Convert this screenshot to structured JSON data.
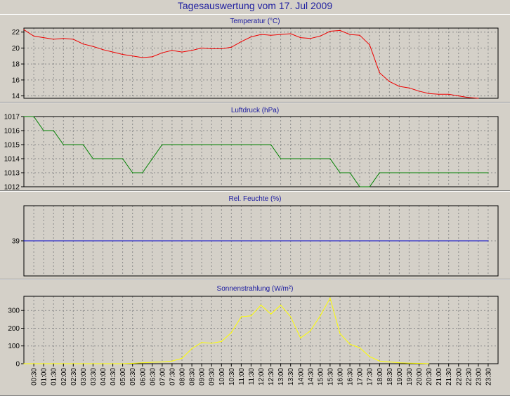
{
  "title": "Tagesauswertung vom 17. Jul 2009",
  "chart_data": [
    {
      "type": "line",
      "title": "Temperatur (°C)",
      "color": "#ee0000",
      "ylim": [
        13.7,
        22.5
      ],
      "yticks": [
        "22",
        "20",
        "18",
        "16",
        "14"
      ],
      "y_tick_values": [
        22,
        20,
        18,
        16,
        14
      ],
      "x": [
        "00:00",
        "00:30",
        "01:00",
        "01:30",
        "02:00",
        "02:30",
        "03:00",
        "03:30",
        "04:00",
        "04:30",
        "05:00",
        "05:30",
        "06:00",
        "06:30",
        "07:00",
        "07:30",
        "08:00",
        "08:30",
        "09:00",
        "09:30",
        "10:00",
        "10:30",
        "11:00",
        "11:30",
        "12:00",
        "12:30",
        "13:00",
        "13:30",
        "14:00",
        "14:30",
        "15:00",
        "15:30",
        "16:00",
        "16:30",
        "17:00",
        "17:30",
        "18:00",
        "18:30",
        "19:00",
        "19:30",
        "20:00",
        "20:30",
        "21:00",
        "21:30",
        "22:00",
        "22:30",
        "23:00"
      ],
      "values": [
        22.3,
        21.5,
        21.3,
        21.1,
        21.2,
        21.1,
        20.5,
        20.2,
        19.8,
        19.5,
        19.2,
        19.0,
        18.8,
        18.9,
        19.4,
        19.7,
        19.5,
        19.7,
        20.0,
        19.9,
        19.9,
        20.1,
        20.8,
        21.4,
        21.7,
        21.6,
        21.7,
        21.8,
        21.3,
        21.2,
        21.5,
        22.1,
        22.2,
        21.7,
        21.6,
        20.4,
        16.9,
        15.8,
        15.2,
        15.0,
        14.6,
        14.3,
        14.2,
        14.2,
        14.0,
        13.8,
        13.7
      ]
    },
    {
      "type": "line",
      "title": "Luftdruck (hPa)",
      "color": "#008000",
      "ylim": [
        1012,
        1017
      ],
      "yticks": [
        "1017",
        "1016",
        "1015",
        "1014",
        "1013",
        "1012"
      ],
      "y_tick_values": [
        1017,
        1016,
        1015,
        1014,
        1013,
        1012
      ],
      "x": [
        "00:00",
        "00:30",
        "01:00",
        "01:30",
        "02:00",
        "02:30",
        "03:00",
        "03:30",
        "04:00",
        "04:30",
        "05:00",
        "05:30",
        "06:00",
        "06:30",
        "07:00",
        "07:30",
        "08:00",
        "08:30",
        "09:00",
        "09:30",
        "10:00",
        "10:30",
        "11:00",
        "11:30",
        "12:00",
        "12:30",
        "13:00",
        "13:30",
        "14:00",
        "14:30",
        "15:00",
        "15:30",
        "16:00",
        "16:30",
        "17:00",
        "17:30",
        "18:00",
        "18:30",
        "19:00",
        "19:30",
        "20:00",
        "20:30",
        "21:00",
        "21:30",
        "22:00",
        "22:30",
        "23:00",
        "23:30"
      ],
      "values": [
        1017,
        1017,
        1016,
        1016,
        1015,
        1015,
        1015,
        1014,
        1014,
        1014,
        1014,
        1013,
        1013,
        1014,
        1015,
        1015,
        1015,
        1015,
        1015,
        1015,
        1015,
        1015,
        1015,
        1015,
        1015,
        1015,
        1014,
        1014,
        1014,
        1014,
        1014,
        1014,
        1013,
        1013,
        1012,
        1012,
        1013,
        1013,
        1013,
        1013,
        1013,
        1013,
        1013,
        1013,
        1013,
        1013,
        1013,
        1013
      ]
    },
    {
      "type": "line",
      "title": "Rel. Feuchte (%)",
      "color": "#0000cc",
      "ylim": [
        29,
        49
      ],
      "yticks": [
        "39"
      ],
      "y_tick_values": [
        39
      ],
      "x": [
        "00:00",
        "23:30"
      ],
      "values": [
        39,
        39
      ]
    },
    {
      "type": "line",
      "title": "Sonnenstrahlung (W/m²)",
      "color": "#ffff00",
      "ylim": [
        0,
        380
      ],
      "yticks": [
        "300",
        "200",
        "100",
        "0"
      ],
      "y_tick_values": [
        300,
        200,
        100,
        0
      ],
      "x": [
        "00:00",
        "00:30",
        "01:00",
        "01:30",
        "02:00",
        "02:30",
        "03:00",
        "03:30",
        "04:00",
        "04:30",
        "05:00",
        "05:30",
        "06:00",
        "06:30",
        "07:00",
        "07:30",
        "08:00",
        "08:30",
        "09:00",
        "09:30",
        "10:00",
        "10:30",
        "11:00",
        "11:30",
        "12:00",
        "12:30",
        "13:00",
        "13:30",
        "14:00",
        "14:30",
        "15:00",
        "15:30",
        "16:00",
        "16:30",
        "17:00",
        "17:30",
        "18:00",
        "18:30",
        "19:00",
        "19:30",
        "20:00",
        "20:30"
      ],
      "values": [
        0,
        0,
        0,
        0,
        0,
        0,
        0,
        0,
        0,
        0,
        0,
        2,
        5,
        8,
        10,
        15,
        30,
        85,
        120,
        115,
        125,
        175,
        265,
        270,
        330,
        280,
        330,
        265,
        145,
        185,
        270,
        370,
        170,
        110,
        90,
        40,
        15,
        10,
        5,
        3,
        2,
        0
      ]
    }
  ],
  "x_axis": {
    "labels": [
      "00:30",
      "01:00",
      "01:30",
      "02:00",
      "02:30",
      "03:00",
      "03:30",
      "04:00",
      "04:30",
      "05:00",
      "05:30",
      "06:00",
      "06:30",
      "07:00",
      "07:30",
      "08:00",
      "08:30",
      "09:00",
      "09:30",
      "10:00",
      "10:30",
      "11:00",
      "11:30",
      "12:00",
      "12:30",
      "13:00",
      "13:30",
      "14:00",
      "14:30",
      "15:00",
      "15:30",
      "16:00",
      "16:30",
      "17:00",
      "17:30",
      "18:00",
      "18:30",
      "19:00",
      "19:30",
      "20:00",
      "20:30",
      "21:00",
      "21:30",
      "22:00",
      "22:30",
      "23:00",
      "23:30"
    ]
  }
}
